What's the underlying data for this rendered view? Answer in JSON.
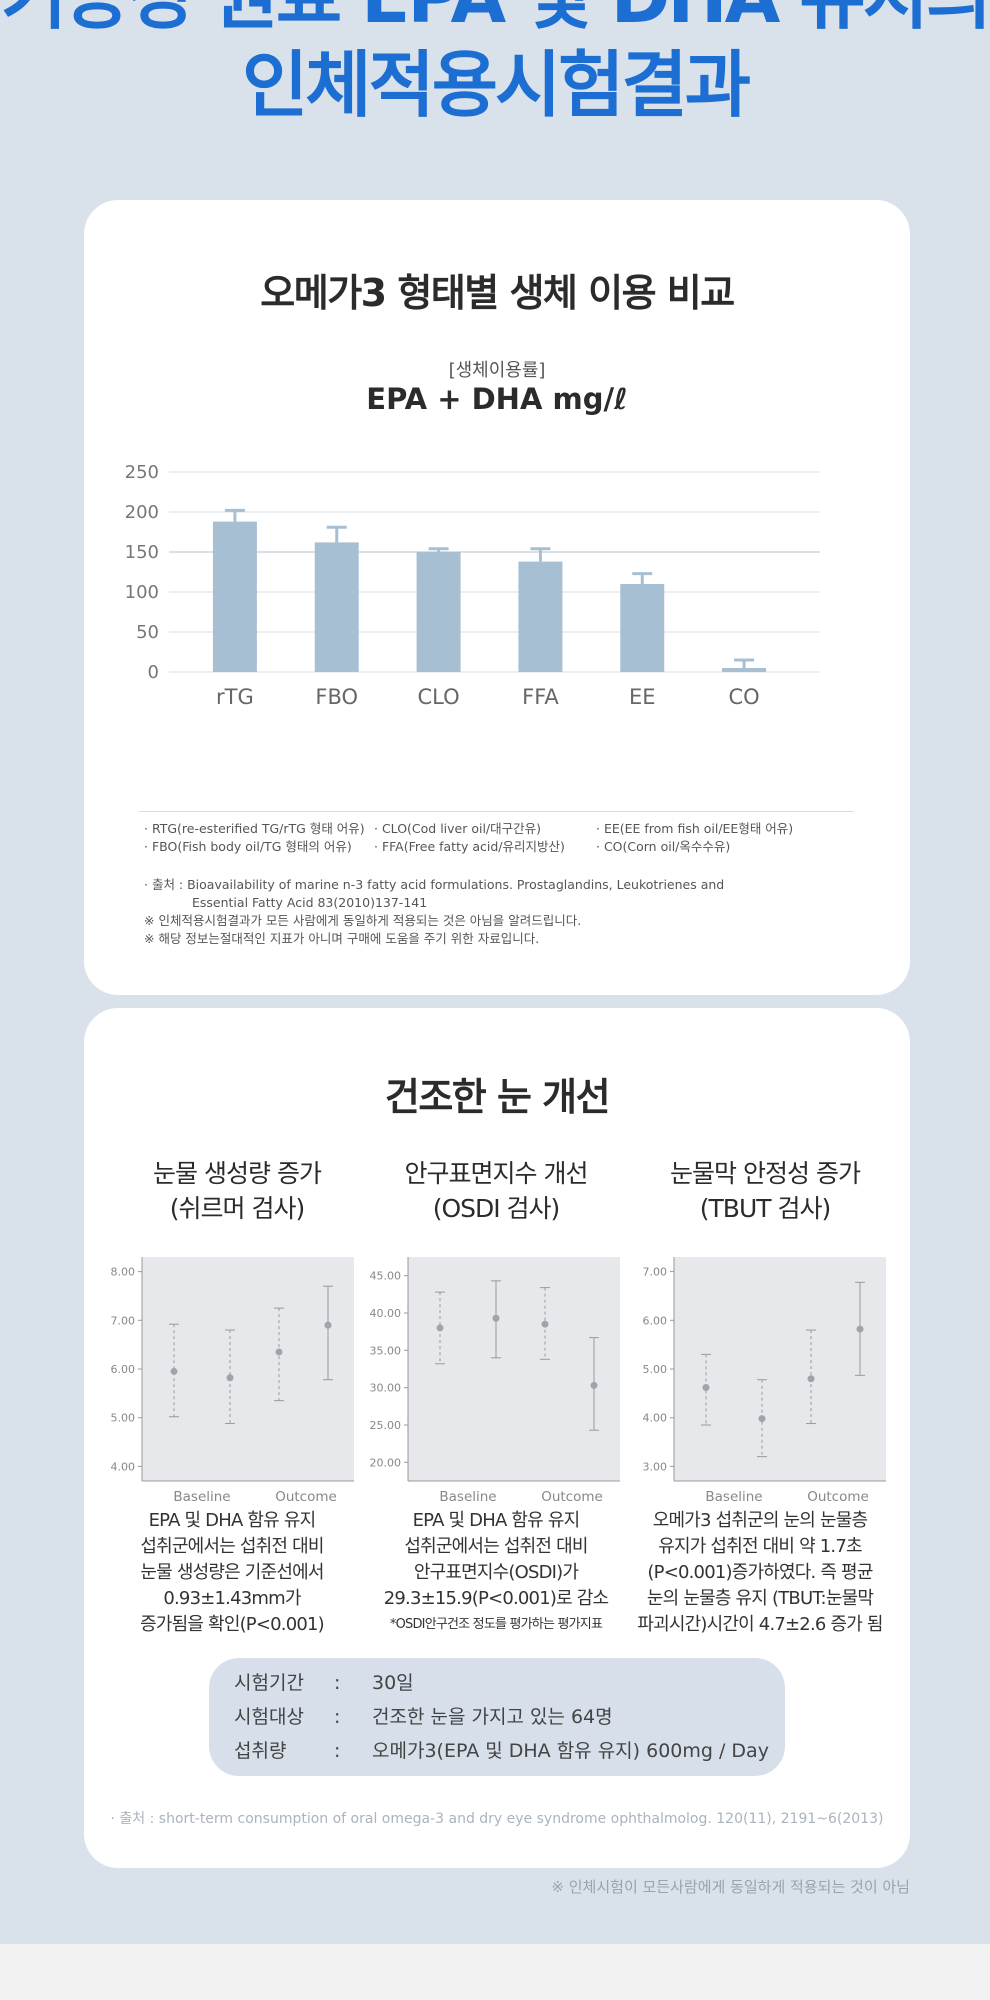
{
  "hero": {
    "line1": "기능성 원료 EPA 및 DHA 유지의",
    "line2": "인체적용시험결과"
  },
  "bioavailability": {
    "title": "오메가3 형태별 생체 이용 비교",
    "subtitle": "[생체이용률]",
    "unit_label": "EPA + DHA mg/ℓ",
    "legend": [
      [
        "· RTG(re-esterified TG/rTG 형태 어유)",
        "· CLO(Cod liver oil/대구간유)",
        "· EE(EE from fish oil/EE형태 어유)"
      ],
      [
        "· FBO(Fish body oil/TG 형태의 어유)",
        "· FFA(Free fatty acid/유리지방산)",
        "· CO(Corn oil/옥수수유)"
      ]
    ],
    "source_label": "· 출처 : ",
    "source_line1": "Bioavailability of marine n-3 fatty acid formulations. Prostaglandins, Leukotrienes and",
    "source_line2": "Essential Fatty Acid 83(2010)137-141",
    "note1": "※ 인체적용시험결과가 모든 사람에게 동일하게 적용되는 것은 아님을 알려드립니다.",
    "note2": "※ 해당 정보는절대적인 지표가 아니며 구매에 도움을 주기 위한 자료입니다."
  },
  "chart_data": [
    {
      "type": "bar",
      "title": "",
      "categories": [
        "rTG",
        "FBO",
        "CLO",
        "FFA",
        "EE",
        "CO"
      ],
      "values": [
        188,
        162,
        150,
        138,
        110,
        5
      ],
      "error_upper": [
        202,
        181,
        154,
        154,
        123,
        15
      ],
      "ylim": [
        0,
        250
      ],
      "yticks": [
        0,
        50,
        100,
        150,
        200,
        250
      ],
      "grid": true,
      "bar_color": "#a7bfd3"
    },
    {
      "type": "scatter",
      "title": "눈물 생성량 증가 (쉬르머 검사)",
      "categories": [
        "Baseline",
        "Outcome"
      ],
      "points": [
        {
          "mean": 5.95,
          "low": 5.02,
          "high": 6.92
        },
        {
          "mean": 5.82,
          "low": 4.88,
          "high": 6.8
        },
        {
          "mean": 6.35,
          "low": 5.35,
          "high": 7.25
        },
        {
          "mean": 6.9,
          "low": 5.78,
          "high": 7.7
        }
      ],
      "ylim": [
        3.7,
        8.3
      ],
      "yticks": [
        "4.00",
        "5.00",
        "6.00",
        "7.00",
        "8.00"
      ]
    },
    {
      "type": "scatter",
      "title": "안구표면지수 개선 (OSDI 검사)",
      "categories": [
        "Baseline",
        "Outcome"
      ],
      "points": [
        {
          "mean": 38.0,
          "low": 33.2,
          "high": 42.8
        },
        {
          "mean": 39.3,
          "low": 34.0,
          "high": 44.3
        },
        {
          "mean": 38.5,
          "low": 33.8,
          "high": 43.4
        },
        {
          "mean": 30.3,
          "low": 24.3,
          "high": 36.7
        }
      ],
      "ylim": [
        17.5,
        47.5
      ],
      "yticks": [
        "20.00",
        "25.00",
        "30.00",
        "35.00",
        "40.00",
        "45.00"
      ]
    },
    {
      "type": "scatter",
      "title": "눈물막 안정성 증가 (TBUT 검사)",
      "categories": [
        "Baseline",
        "Outcome"
      ],
      "points": [
        {
          "mean": 4.62,
          "low": 3.85,
          "high": 5.3
        },
        {
          "mean": 3.98,
          "low": 3.2,
          "high": 4.78
        },
        {
          "mean": 4.8,
          "low": 3.88,
          "high": 5.8
        },
        {
          "mean": 5.82,
          "low": 4.87,
          "high": 6.78
        }
      ],
      "ylim": [
        2.7,
        7.3
      ],
      "yticks": [
        "3.00",
        "4.00",
        "5.00",
        "6.00",
        "7.00"
      ]
    }
  ],
  "dry_eye": {
    "title": "건조한 눈 개선",
    "panels": [
      {
        "title_line1": "눈물 생성량 증가",
        "title_line2": "(쉬르머 검사)",
        "desc": [
          "EPA 및 DHA 함유 유지",
          "섭취군에서는 섭취전 대비",
          "눈물 생성량은 기준선에서",
          "0.93±1.43mm가",
          "증가됨을 확인(P<0.001)"
        ]
      },
      {
        "title_line1": "안구표면지수 개선",
        "title_line2": "(OSDI 검사)",
        "desc": [
          "EPA 및 DHA 함유 유지",
          "섭취군에서는 섭취전 대비",
          "안구표면지수(OSDI)가",
          "29.3±15.9(P<0.001)로 감소"
        ],
        "desc_note": "*OSDI안구건조 정도를 평가하는 평가지표"
      },
      {
        "title_line1": "눈물막 안정성 증가",
        "title_line2": "(TBUT 검사)",
        "desc": [
          "오메가3 섭취군의 눈의 눈물층",
          "유지가 섭취전 대비 약 1.7초",
          "(P<0.001)증가하였다. 즉 평균",
          "눈의 눈물층 유지 (TBUT:눈물막",
          "파괴시간)시간이 4.7±2.6 증가 됨"
        ]
      }
    ],
    "axis_labels": [
      "Baseline",
      "Outcome"
    ],
    "info": [
      {
        "k": "시험기간",
        "sep": ":",
        "v": "30일"
      },
      {
        "k": "시험대상",
        "sep": ":",
        "v": "건조한 눈을 가지고 있는 64명"
      },
      {
        "k": "섭취량",
        "sep": ":",
        "v": "오메가3(EPA 및 DHA 함유 유지) 600mg / Day"
      }
    ],
    "source": "· 출처 : short-term consumption of oral omega-3 and dry eye syndrome ophthalmolog. 120(11), 2191~6(2013)"
  },
  "footnote": "※ 인체시험이 모든사람에게 동일하게 적용되는 것이 아님"
}
